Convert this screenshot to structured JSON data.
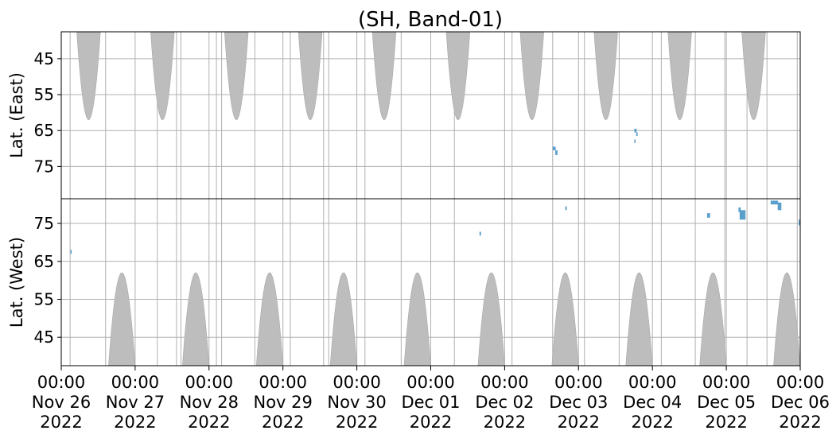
{
  "chart_data": {
    "type": "heatmap",
    "title": "(SH, Band-01)",
    "xlabel": "",
    "x_ticks": [
      {
        "time": "00:00",
        "date": "Nov 26",
        "year": "2022"
      },
      {
        "time": "00:00",
        "date": "Nov 27",
        "year": "2022"
      },
      {
        "time": "00:00",
        "date": "Nov 28",
        "year": "2022"
      },
      {
        "time": "00:00",
        "date": "Nov 29",
        "year": "2022"
      },
      {
        "time": "00:00",
        "date": "Nov 30",
        "year": "2022"
      },
      {
        "time": "00:00",
        "date": "Dec 01",
        "year": "2022"
      },
      {
        "time": "00:00",
        "date": "Dec 02",
        "year": "2022"
      },
      {
        "time": "00:00",
        "date": "Dec 03",
        "year": "2022"
      },
      {
        "time": "00:00",
        "date": "Dec 04",
        "year": "2022"
      },
      {
        "time": "00:00",
        "date": "Dec 05",
        "year": "2022"
      },
      {
        "time": "00:00",
        "date": "Dec 06",
        "year": "2022"
      }
    ],
    "xlim": [
      "2022-11-26 00:00",
      "2022-12-06 00:00"
    ],
    "grid": true,
    "colors": {
      "fill": "#bdbdbd",
      "detection": "#5b9fcb",
      "grid": "#b0b0b0"
    },
    "panels": [
      {
        "name": "east",
        "ylabel": "Lat. (East)",
        "ylim": [
          37.5,
          84.0
        ],
        "y_inverted": true,
        "y_ticks": [
          45,
          55,
          65,
          75
        ],
        "fill_lobes": [
          {
            "center_day": 0.37,
            "half_width_days": 0.16,
            "max_lat": 62
          },
          {
            "center_day": 1.37,
            "half_width_days": 0.16,
            "max_lat": 62
          },
          {
            "center_day": 2.37,
            "half_width_days": 0.16,
            "max_lat": 62
          },
          {
            "center_day": 3.37,
            "half_width_days": 0.16,
            "max_lat": 62
          },
          {
            "center_day": 4.37,
            "half_width_days": 0.16,
            "max_lat": 62
          },
          {
            "center_day": 5.37,
            "half_width_days": 0.16,
            "max_lat": 62
          },
          {
            "center_day": 6.37,
            "half_width_days": 0.16,
            "max_lat": 62
          },
          {
            "center_day": 7.37,
            "half_width_days": 0.16,
            "max_lat": 62
          },
          {
            "center_day": 8.37,
            "half_width_days": 0.16,
            "max_lat": 62
          },
          {
            "center_day": 9.37,
            "half_width_days": 0.16,
            "max_lat": 62
          }
        ],
        "detections": [
          {
            "day": 6.67,
            "lat_from": 69.5,
            "lat_to": 70.5,
            "width_days": 0.04
          },
          {
            "day": 6.7,
            "lat_from": 70.5,
            "lat_to": 71.8,
            "width_days": 0.03
          },
          {
            "day": 7.77,
            "lat_from": 64.5,
            "lat_to": 65.5,
            "width_days": 0.03
          },
          {
            "day": 7.79,
            "lat_from": 65.5,
            "lat_to": 66.5,
            "width_days": 0.02
          },
          {
            "day": 7.76,
            "lat_from": 67.5,
            "lat_to": 68.5,
            "width_days": 0.01
          }
        ]
      },
      {
        "name": "west",
        "ylabel": "Lat. (West)",
        "ylim": [
          37.5,
          81.5
        ],
        "y_inverted": false,
        "y_ticks": [
          45,
          55,
          65,
          75
        ],
        "fill_lobes": [
          {
            "center_day": 0.82,
            "half_width_days": 0.18,
            "max_lat": 62
          },
          {
            "center_day": 1.82,
            "half_width_days": 0.18,
            "max_lat": 62
          },
          {
            "center_day": 2.82,
            "half_width_days": 0.18,
            "max_lat": 62
          },
          {
            "center_day": 3.82,
            "half_width_days": 0.18,
            "max_lat": 62
          },
          {
            "center_day": 4.82,
            "half_width_days": 0.18,
            "max_lat": 62
          },
          {
            "center_day": 5.82,
            "half_width_days": 0.18,
            "max_lat": 62
          },
          {
            "center_day": 6.82,
            "half_width_days": 0.18,
            "max_lat": 62
          },
          {
            "center_day": 7.82,
            "half_width_days": 0.18,
            "max_lat": 62
          },
          {
            "center_day": 8.82,
            "half_width_days": 0.18,
            "max_lat": 62
          },
          {
            "center_day": 9.82,
            "half_width_days": 0.18,
            "max_lat": 62
          }
        ],
        "detections": [
          {
            "day": 0.13,
            "lat_from": 67.0,
            "lat_to": 68.0,
            "width_days": 0.01
          },
          {
            "day": 5.67,
            "lat_from": 71.8,
            "lat_to": 72.8,
            "width_days": 0.02
          },
          {
            "day": 6.83,
            "lat_from": 78.5,
            "lat_to": 79.5,
            "width_days": 0.02
          },
          {
            "day": 8.76,
            "lat_from": 76.5,
            "lat_to": 77.7,
            "width_days": 0.04
          },
          {
            "day": 9.18,
            "lat_from": 78.0,
            "lat_to": 79.2,
            "width_days": 0.03
          },
          {
            "day": 9.22,
            "lat_from": 76.0,
            "lat_to": 78.5,
            "width_days": 0.08
          },
          {
            "day": 9.65,
            "lat_from": 80.0,
            "lat_to": 81.0,
            "width_days": 0.1
          },
          {
            "day": 9.72,
            "lat_from": 78.5,
            "lat_to": 80.5,
            "width_days": 0.05
          },
          {
            "day": 9.99,
            "lat_from": 74.5,
            "lat_to": 76.0,
            "width_days": 0.02
          }
        ]
      }
    ],
    "vertical_gridlines_days": [
      0.12,
      0.6,
      1.3,
      1.56,
      1.62,
      2.1,
      2.17,
      2.62,
      3.1,
      3.55,
      3.62,
      4.11,
      4.6,
      5.0,
      5.32,
      6.1,
      6.65,
      7.08,
      7.55,
      8.12,
      8.58,
      8.98,
      9.28,
      9.55,
      9.96
    ]
  }
}
